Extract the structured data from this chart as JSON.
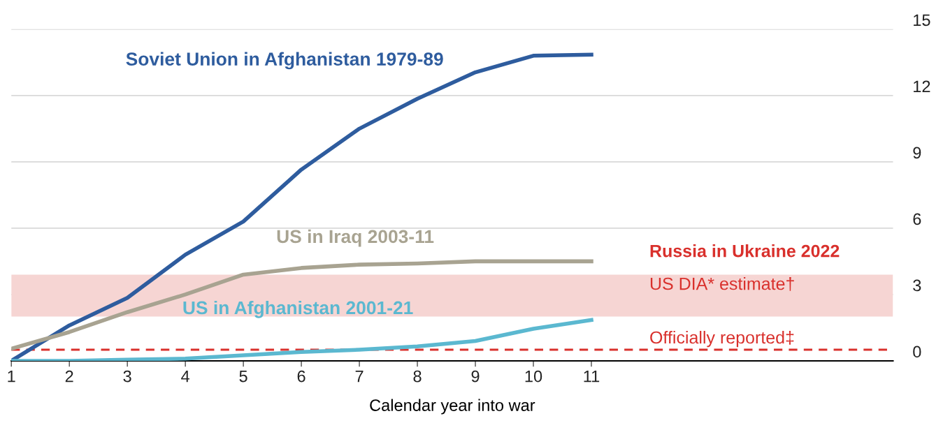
{
  "chart_data": {
    "type": "line",
    "xlabel": "Calendar year into war",
    "x": [
      1,
      2,
      3,
      4,
      5,
      6,
      7,
      8,
      9,
      10,
      11
    ],
    "xlim": [
      1,
      16.2
    ],
    "xticks": [
      1,
      2,
      3,
      4,
      5,
      6,
      7,
      8,
      9,
      10,
      11
    ],
    "ylim": [
      0,
      15
    ],
    "yticks": [
      0,
      3,
      6,
      9,
      12,
      15
    ],
    "grid": "y",
    "legend": false,
    "marker": "none",
    "line_style": "solid",
    "series": [
      {
        "name": "Soviet Union in Afghanistan 1979-89",
        "color": "#2e5c9e",
        "values": [
          0,
          1.6,
          2.85,
          4.8,
          6.3,
          8.65,
          10.5,
          11.85,
          13.05,
          13.8,
          13.85
        ]
      },
      {
        "name": "US in Iraq 2003-11",
        "color": "#a8a391",
        "values": [
          0.55,
          1.3,
          2.2,
          3.0,
          3.9,
          4.2,
          4.35,
          4.4,
          4.5,
          4.5,
          4.5
        ]
      },
      {
        "name": "US in Afghanistan 2001-21",
        "color": "#5bb8d0",
        "values": [
          0,
          0,
          0.05,
          0.1,
          0.25,
          0.4,
          0.5,
          0.65,
          0.9,
          1.45,
          1.85
        ]
      }
    ],
    "bands": [
      {
        "axis": "y",
        "from": 2,
        "to": 3.9,
        "label": "US DIA* estimate†",
        "color": "#f6d5d3"
      }
    ],
    "ref_lines": [
      {
        "axis": "y",
        "value": 0.5,
        "label": "Officially reported‡",
        "color": "#d9302c",
        "line_style": "dashed"
      }
    ],
    "annotations": [
      "Russia in Ukraine 2022"
    ]
  }
}
